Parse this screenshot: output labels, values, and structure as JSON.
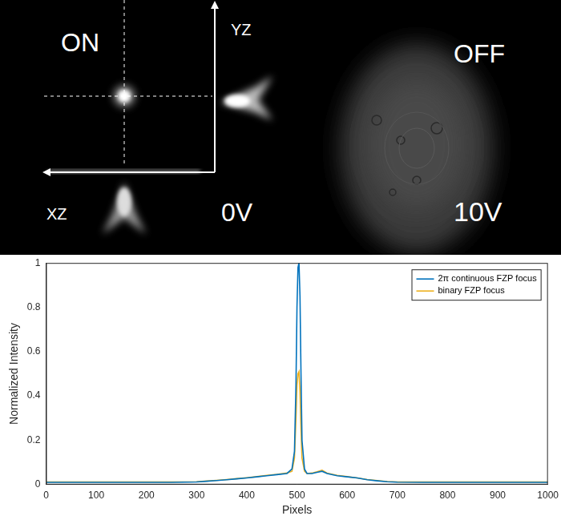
{
  "image_panel": {
    "texts": {
      "on": "ON",
      "yz": "YZ",
      "xz": "XZ",
      "on_voltage": "0V",
      "off": "OFF",
      "off_voltage": "10V"
    }
  },
  "chart_data": {
    "type": "line",
    "x_label": "Pixels",
    "y_label": "Normalized Intensity",
    "x": [
      0,
      50,
      100,
      150,
      200,
      250,
      300,
      320,
      340,
      360,
      380,
      400,
      420,
      440,
      460,
      480,
      490,
      495,
      498,
      500,
      502,
      504,
      506,
      508,
      510,
      515,
      520,
      530,
      540,
      550,
      560,
      580,
      600,
      620,
      640,
      660,
      680,
      700,
      750,
      800,
      850,
      900,
      950,
      1000
    ],
    "series": [
      {
        "name": "2π continuous FZP focus",
        "color": "#0072bd",
        "values": [
          0.01,
          0.01,
          0.01,
          0.01,
          0.01,
          0.01,
          0.012,
          0.015,
          0.018,
          0.022,
          0.026,
          0.03,
          0.035,
          0.04,
          0.045,
          0.05,
          0.07,
          0.15,
          0.45,
          0.8,
          0.98,
          1.0,
          0.85,
          0.5,
          0.2,
          0.07,
          0.05,
          0.05,
          0.055,
          0.06,
          0.05,
          0.04,
          0.035,
          0.03,
          0.022,
          0.017,
          0.013,
          0.011,
          0.01,
          0.01,
          0.01,
          0.01,
          0.01,
          0.01
        ]
      },
      {
        "name": "binary FZP focus",
        "color": "#edb120",
        "values": [
          0.012,
          0.012,
          0.012,
          0.012,
          0.012,
          0.012,
          0.013,
          0.016,
          0.019,
          0.023,
          0.027,
          0.031,
          0.036,
          0.042,
          0.046,
          0.052,
          0.06,
          0.12,
          0.3,
          0.45,
          0.5,
          0.51,
          0.42,
          0.25,
          0.12,
          0.06,
          0.05,
          0.052,
          0.058,
          0.065,
          0.052,
          0.042,
          0.036,
          0.03,
          0.023,
          0.018,
          0.014,
          0.012,
          0.012,
          0.012,
          0.012,
          0.012,
          0.012,
          0.012
        ]
      }
    ],
    "xlim": [
      0,
      1000
    ],
    "xticks": [
      0,
      100,
      200,
      300,
      400,
      500,
      600,
      700,
      800,
      900,
      1000
    ],
    "ylim": [
      0,
      1
    ],
    "yticks": [
      0,
      0.2,
      0.4,
      0.6,
      0.8,
      1
    ],
    "legend": "upper right",
    "grid": false
  }
}
